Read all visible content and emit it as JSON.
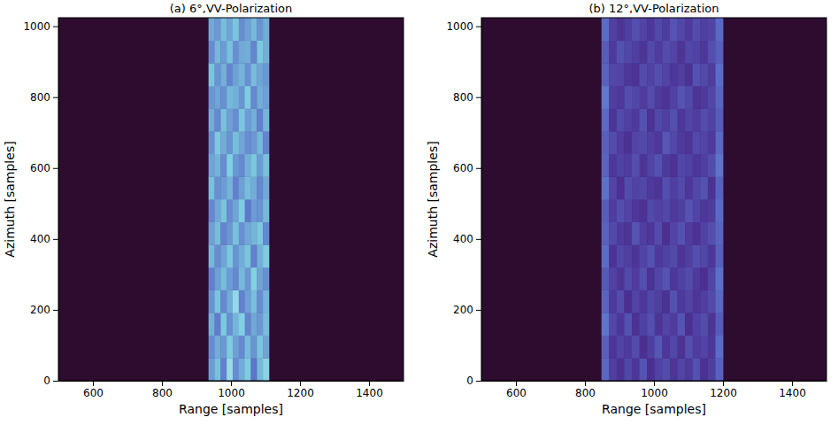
{
  "chart_data": [
    {
      "type": "heatmap",
      "title": "(a) 6°,VV-Polarization",
      "x_label": "Range [samples]",
      "y_label": "Azimuth [samples]",
      "xlim": [
        500,
        1500
      ],
      "xticks": [
        600,
        800,
        1000,
        1200,
        1400
      ],
      "ylim": [
        0,
        1024
      ],
      "yticks": [
        0,
        200,
        400,
        600,
        800,
        1000
      ],
      "vlim": [
        0,
        1
      ],
      "x_edges": [
        935,
        952.5,
        970,
        987.5,
        1005,
        1022.5,
        1040,
        1057.5,
        1075,
        1092.5,
        1110
      ],
      "y_edges": [
        0,
        64,
        128,
        192,
        256,
        320,
        384,
        448,
        512,
        576,
        640,
        704,
        768,
        832,
        896,
        960,
        1024
      ],
      "cells": [
        [
          0.62,
          0.71,
          0.55,
          0.8,
          0.58,
          0.66,
          0.74,
          0.52,
          0.69,
          0.77
        ],
        [
          0.58,
          0.66,
          0.61,
          0.74,
          0.63,
          0.57,
          0.7,
          0.6,
          0.72,
          0.64
        ],
        [
          0.67,
          0.54,
          0.73,
          0.59,
          0.68,
          0.75,
          0.56,
          0.65,
          0.61,
          0.7
        ],
        [
          0.6,
          0.72,
          0.57,
          0.66,
          0.79,
          0.55,
          0.63,
          0.71,
          0.58,
          0.68
        ],
        [
          0.55,
          0.63,
          0.7,
          0.62,
          0.57,
          0.69,
          0.61,
          0.76,
          0.64,
          0.59
        ],
        [
          0.69,
          0.58,
          0.64,
          0.73,
          0.6,
          0.66,
          0.72,
          0.55,
          0.67,
          0.74
        ],
        [
          0.63,
          0.7,
          0.56,
          0.61,
          0.71,
          0.59,
          0.65,
          0.68,
          0.73,
          0.57
        ],
        [
          0.57,
          0.65,
          0.72,
          0.58,
          0.64,
          0.74,
          0.53,
          0.62,
          0.6,
          0.69
        ],
        [
          0.71,
          0.59,
          0.62,
          0.68,
          0.55,
          0.63,
          0.7,
          0.66,
          0.57,
          0.65
        ],
        [
          0.64,
          0.68,
          0.58,
          0.75,
          0.61,
          0.57,
          0.67,
          0.73,
          0.62,
          0.71
        ],
        [
          0.59,
          0.73,
          0.66,
          0.6,
          0.7,
          0.64,
          0.58,
          0.61,
          0.69,
          0.56
        ],
        [
          0.66,
          0.57,
          0.71,
          0.63,
          0.58,
          0.72,
          0.62,
          0.67,
          0.55,
          0.68
        ],
        [
          0.61,
          0.64,
          0.59,
          0.69,
          0.67,
          0.6,
          0.74,
          0.57,
          0.66,
          0.63
        ],
        [
          0.72,
          0.6,
          0.67,
          0.56,
          0.63,
          0.68,
          0.59,
          0.7,
          0.64,
          0.61
        ],
        [
          0.58,
          0.69,
          0.62,
          0.71,
          0.59,
          0.65,
          0.66,
          0.56,
          0.73,
          0.67
        ],
        [
          0.65,
          0.61,
          0.7,
          0.64,
          0.72,
          0.58,
          0.63,
          0.69,
          0.6,
          0.66
        ]
      ]
    },
    {
      "type": "heatmap",
      "title": "(b) 12°,VV-Polarization",
      "x_label": "Range [samples]",
      "y_label": "Azimuth [samples]",
      "xlim": [
        500,
        1500
      ],
      "xticks": [
        600,
        800,
        1000,
        1200,
        1400
      ],
      "ylim": [
        0,
        1024
      ],
      "yticks": [
        0,
        200,
        400,
        600,
        800,
        1000
      ],
      "vlim": [
        0,
        1
      ],
      "x_edges": [
        848,
        870,
        892,
        914,
        936,
        958,
        980,
        1002,
        1024,
        1046,
        1068,
        1090,
        1112,
        1134,
        1156,
        1178,
        1200
      ],
      "y_edges": [
        0,
        64,
        128,
        192,
        256,
        320,
        384,
        448,
        512,
        576,
        640,
        704,
        768,
        832,
        896,
        960,
        1024
      ],
      "cells": [
        [
          0.48,
          0.33,
          0.28,
          0.36,
          0.3,
          0.41,
          0.27,
          0.34,
          0.38,
          0.29,
          0.35,
          0.31,
          0.4,
          0.28,
          0.33,
          0.46
        ],
        [
          0.45,
          0.29,
          0.35,
          0.31,
          0.38,
          0.27,
          0.33,
          0.42,
          0.3,
          0.36,
          0.28,
          0.39,
          0.32,
          0.35,
          0.3,
          0.5
        ],
        [
          0.52,
          0.36,
          0.3,
          0.4,
          0.28,
          0.34,
          0.39,
          0.29,
          0.35,
          0.32,
          0.41,
          0.27,
          0.34,
          0.38,
          0.29,
          0.44
        ],
        [
          0.47,
          0.31,
          0.38,
          0.27,
          0.35,
          0.3,
          0.36,
          0.33,
          0.28,
          0.4,
          0.31,
          0.35,
          0.29,
          0.33,
          0.37,
          0.48
        ],
        [
          0.43,
          0.34,
          0.29,
          0.37,
          0.32,
          0.39,
          0.28,
          0.36,
          0.41,
          0.3,
          0.34,
          0.38,
          0.31,
          0.27,
          0.35,
          0.51
        ],
        [
          0.5,
          0.28,
          0.36,
          0.33,
          0.29,
          0.35,
          0.4,
          0.31,
          0.34,
          0.37,
          0.29,
          0.33,
          0.39,
          0.36,
          0.3,
          0.45
        ],
        [
          0.46,
          0.37,
          0.31,
          0.29,
          0.41,
          0.33,
          0.3,
          0.38,
          0.27,
          0.35,
          0.4,
          0.32,
          0.28,
          0.34,
          0.39,
          0.47
        ],
        [
          0.44,
          0.32,
          0.39,
          0.35,
          0.3,
          0.28,
          0.37,
          0.34,
          0.36,
          0.31,
          0.33,
          0.41,
          0.35,
          0.3,
          0.32,
          0.49
        ],
        [
          0.51,
          0.35,
          0.27,
          0.38,
          0.34,
          0.36,
          0.31,
          0.29,
          0.39,
          0.33,
          0.37,
          0.3,
          0.36,
          0.4,
          0.28,
          0.46
        ],
        [
          0.47,
          0.3,
          0.34,
          0.32,
          0.39,
          0.29,
          0.35,
          0.4,
          0.31,
          0.28,
          0.36,
          0.34,
          0.3,
          0.33,
          0.38,
          0.52
        ],
        [
          0.45,
          0.38,
          0.32,
          0.28,
          0.35,
          0.37,
          0.33,
          0.3,
          0.42,
          0.36,
          0.31,
          0.29,
          0.37,
          0.35,
          0.31,
          0.48
        ],
        [
          0.49,
          0.29,
          0.37,
          0.34,
          0.31,
          0.4,
          0.28,
          0.36,
          0.33,
          0.39,
          0.3,
          0.35,
          0.32,
          0.38,
          0.34,
          0.44
        ],
        [
          0.53,
          0.33,
          0.3,
          0.39,
          0.36,
          0.32,
          0.38,
          0.31,
          0.29,
          0.34,
          0.41,
          0.37,
          0.29,
          0.31,
          0.36,
          0.47
        ],
        [
          0.46,
          0.36,
          0.35,
          0.3,
          0.28,
          0.38,
          0.34,
          0.39,
          0.35,
          0.3,
          0.33,
          0.28,
          0.4,
          0.37,
          0.32,
          0.5
        ],
        [
          0.44,
          0.31,
          0.4,
          0.36,
          0.33,
          0.29,
          0.37,
          0.32,
          0.38,
          0.35,
          0.29,
          0.36,
          0.34,
          0.3,
          0.39,
          0.45
        ],
        [
          0.5,
          0.34,
          0.29,
          0.33,
          0.39,
          0.35,
          0.3,
          0.37,
          0.32,
          0.41,
          0.36,
          0.31,
          0.38,
          0.33,
          0.35,
          0.49
        ]
      ]
    }
  ]
}
